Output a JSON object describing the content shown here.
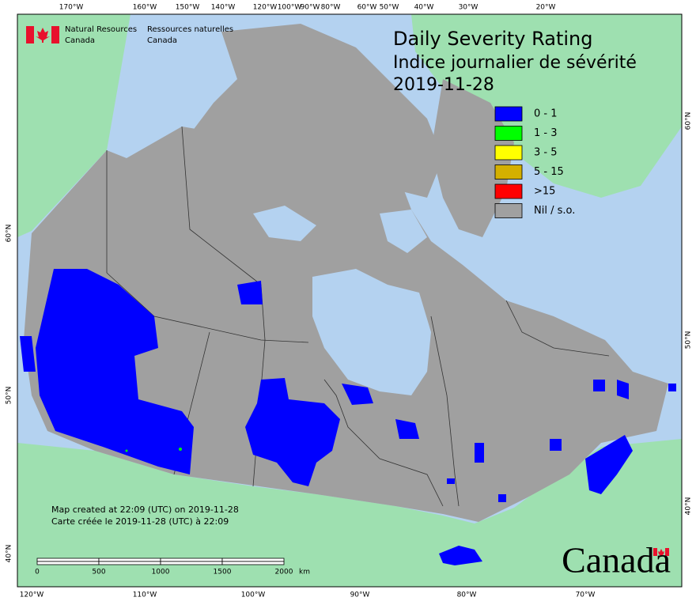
{
  "header": {
    "agency_en": [
      "Natural Resources",
      "Canada"
    ],
    "agency_fr": [
      "Ressources naturelles",
      "Canada"
    ]
  },
  "title": {
    "line1": "Daily Severity Rating",
    "line2": "Indice journalier de sévérité",
    "date": "2019-11-28"
  },
  "legend": [
    {
      "label": "0 - 1",
      "color": "#0000ff"
    },
    {
      "label": "1 - 3",
      "color": "#00ff00"
    },
    {
      "label": "3 - 5",
      "color": "#ffff00"
    },
    {
      "label": "5 - 15",
      "color": "#d4b000"
    },
    {
      "label": ">15",
      "color": "#ff0000"
    },
    {
      "label": "Nil / s.o.",
      "color": "#a0a0a0"
    }
  ],
  "notes": [
    "Map created at 22:09 (UTC) on 2019-11-28",
    "Carte créée le 2019-11-28 (UTC) à 22:09"
  ],
  "scale_bar": {
    "ticks": [
      0,
      500,
      1000,
      1500,
      2000
    ],
    "unit": "km"
  },
  "graticule": {
    "top": [
      "170°W",
      "160°W",
      "150°W",
      "140°W",
      "120°W",
      "100°W",
      "90°W",
      "80°W",
      "60°W",
      "50°W",
      "40°W",
      "30°W",
      "20°W"
    ],
    "bottom": [
      "120°W",
      "110°W",
      "100°W",
      "90°W",
      "80°W",
      "70°W"
    ],
    "left": [
      "40°N",
      "50°N",
      "60°N"
    ],
    "right": [
      "40°N",
      "50°N",
      "60°N"
    ]
  },
  "wordmark": "Canada"
}
